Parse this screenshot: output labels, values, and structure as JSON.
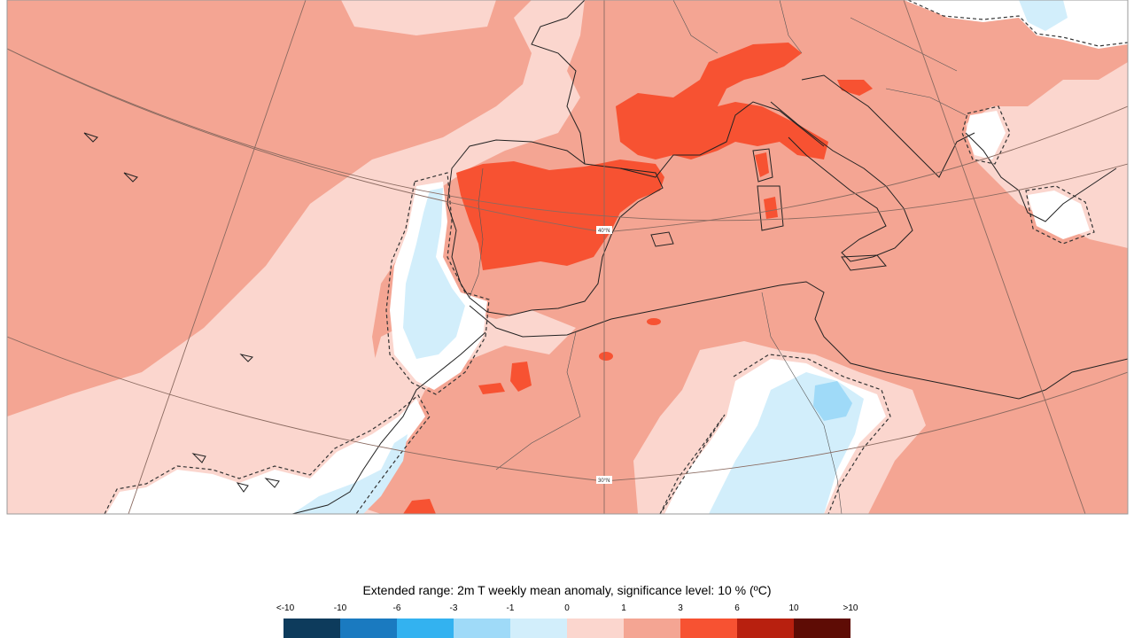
{
  "legend": {
    "title": "Extended range: 2m T weekly mean anomaly, significance level: 10 % (ºC)",
    "ticks": [
      "<-10",
      "-10",
      "-6",
      "-3",
      "-1",
      "0",
      "1",
      "3",
      "6",
      "10",
      ">10"
    ],
    "colors": [
      "#0d3b5c",
      "#1a7ac0",
      "#33b2f0",
      "#9fdaf8",
      "#d2eefb",
      "#fbd6ce",
      "#f4a593",
      "#f75232",
      "#b8200f",
      "#5e0c05"
    ]
  },
  "map": {
    "latitude_labels": [
      "40°N",
      "30°N"
    ],
    "background_color": "#f4a593"
  }
}
